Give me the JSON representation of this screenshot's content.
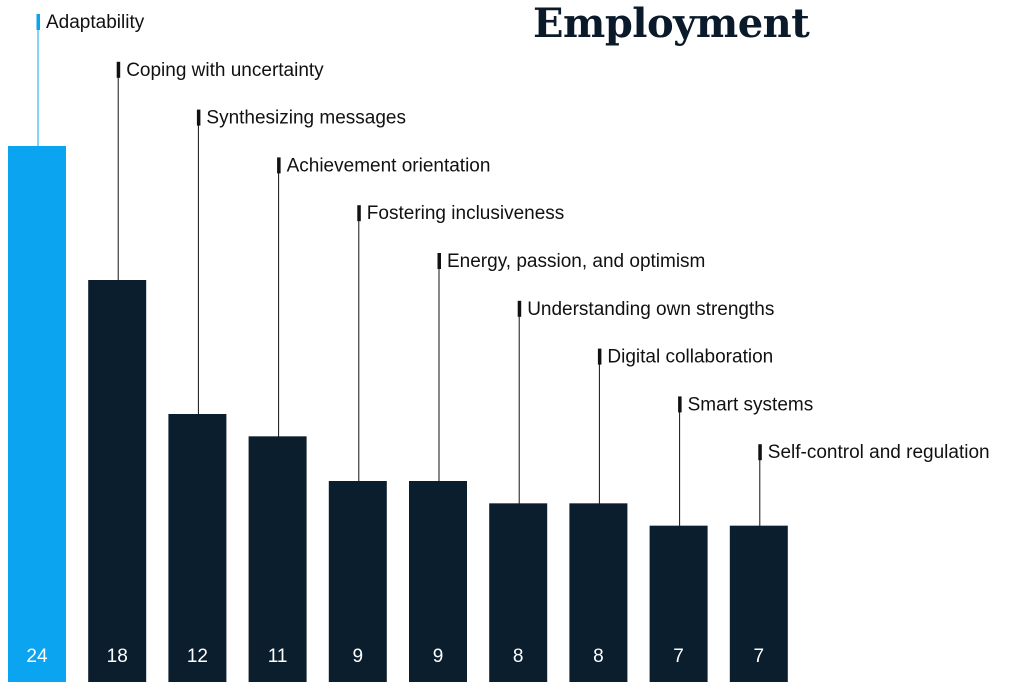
{
  "chart_data": {
    "type": "bar",
    "title": "Employment",
    "categories": [
      "Adaptability",
      "Coping with uncertainty",
      "Synthesizing messages",
      "Achievement orientation",
      "Fostering inclusiveness",
      "Energy, passion, and optimism",
      "Understanding own strengths",
      "Digital collaboration",
      "Smart systems",
      "Self-control and regulation"
    ],
    "values": [
      24,
      18,
      12,
      11,
      9,
      9,
      8,
      8,
      7,
      7
    ],
    "data_labels": [
      "24",
      "18",
      "12",
      "11",
      "9",
      "9",
      "8",
      "8",
      "7",
      "7"
    ],
    "highlight_index": 0,
    "colors": {
      "highlight": "#0aa4f0",
      "bar": "#0b1e2d",
      "data_label": "#ffffff",
      "text": "#111111",
      "leader": "#111111"
    },
    "xlabel": "",
    "ylabel": "",
    "grid": false
  }
}
